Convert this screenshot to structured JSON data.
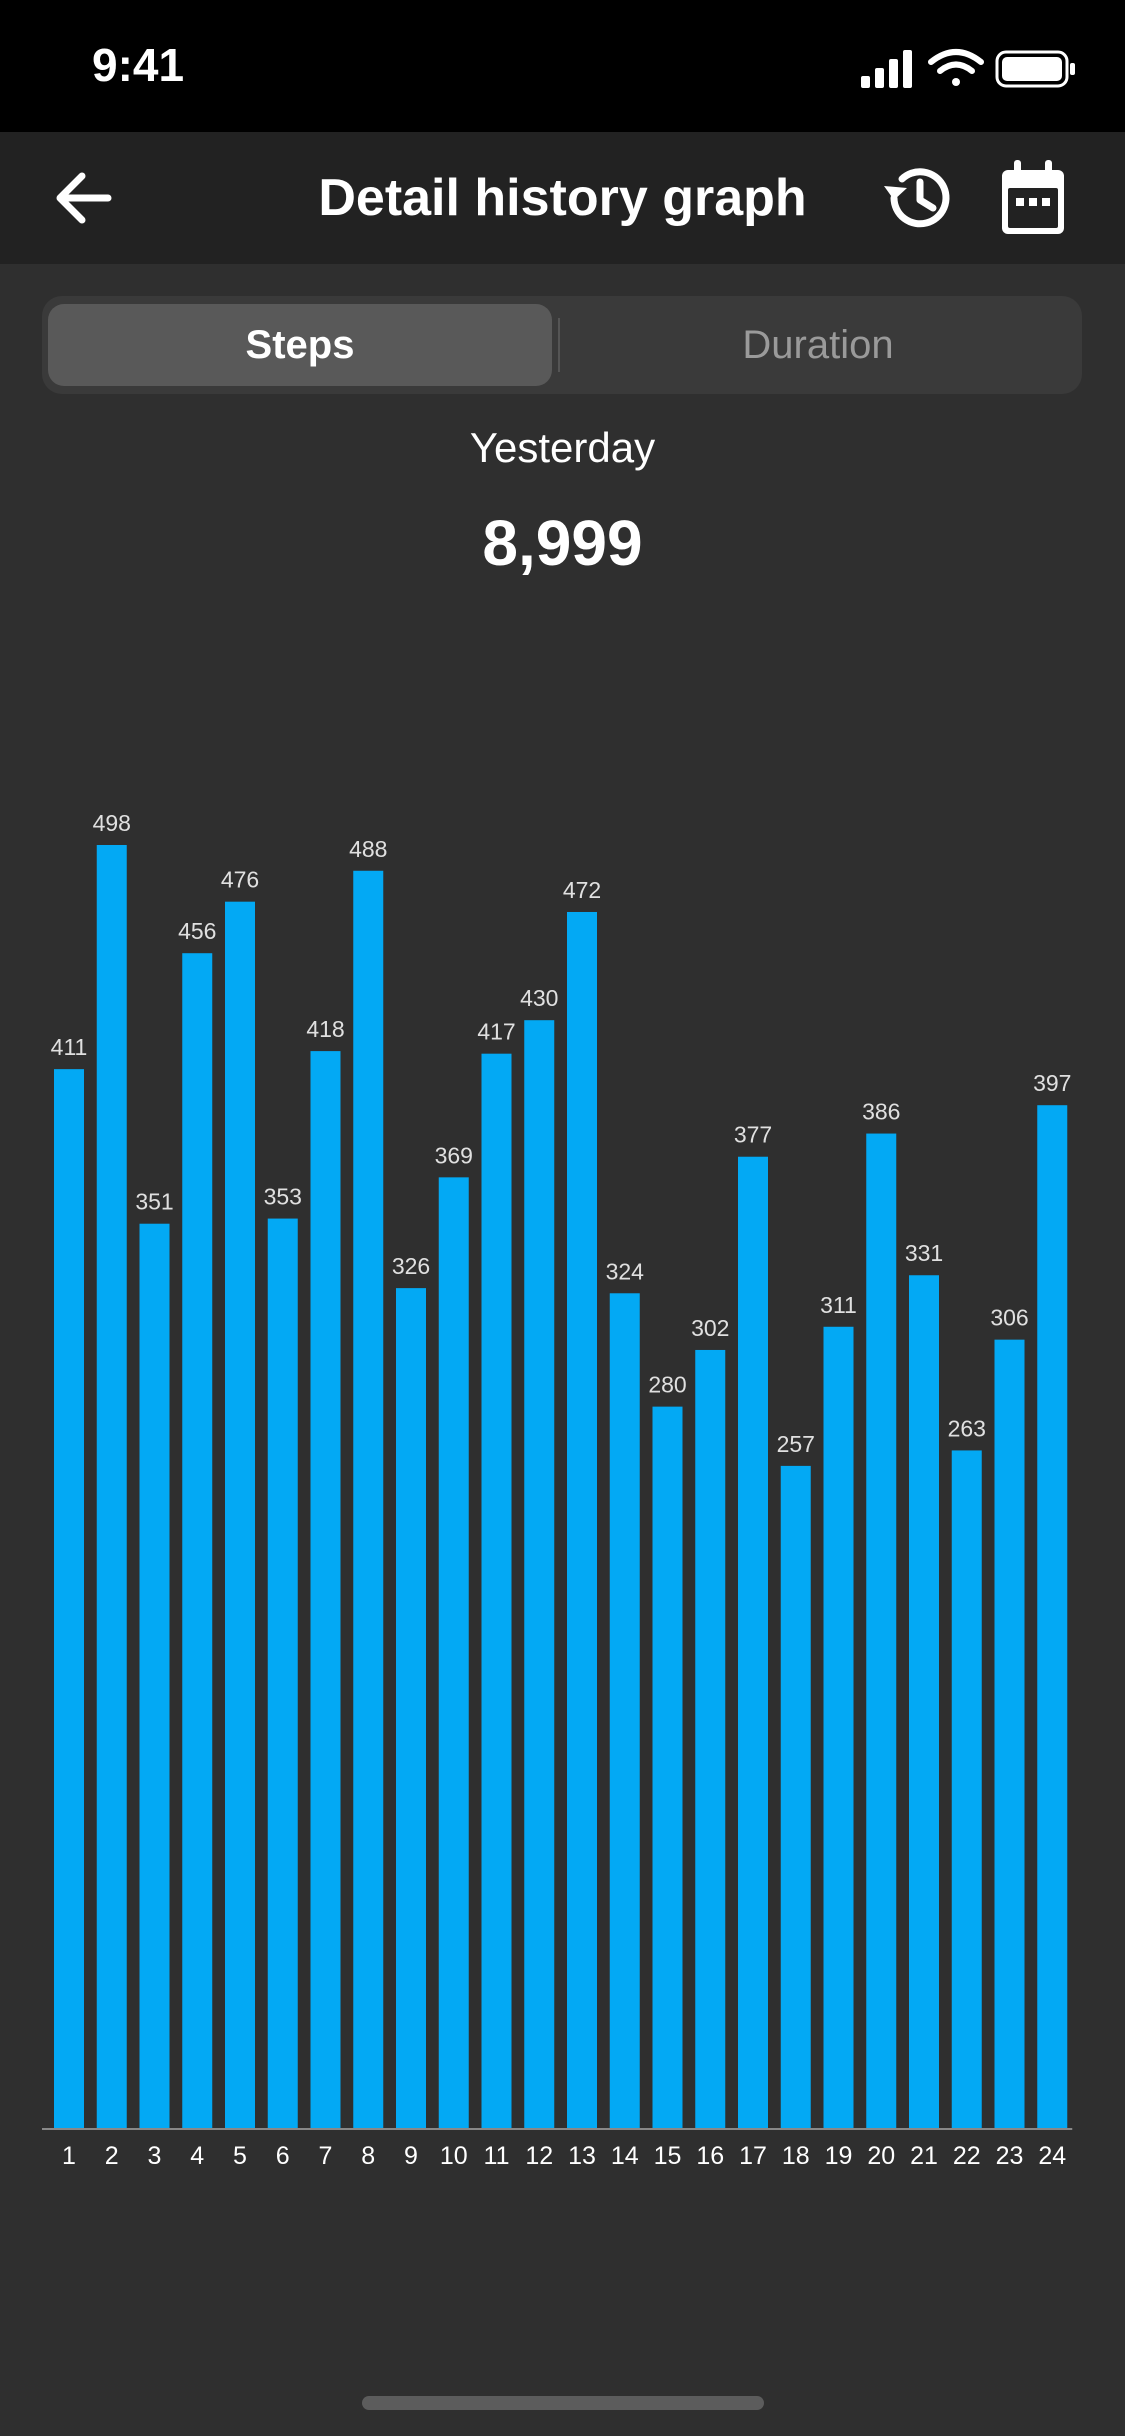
{
  "status_bar": {
    "time": "9:41"
  },
  "header": {
    "title": "Detail history graph"
  },
  "icons": {
    "back": "arrow-left-icon",
    "history": "history-icon",
    "calendar": "calendar-icon",
    "signal": "cellular-signal-icon",
    "wifi": "wifi-icon",
    "battery": "battery-icon"
  },
  "tabs": [
    {
      "label": "Steps",
      "selected": true
    },
    {
      "label": "Duration",
      "selected": false
    }
  ],
  "summary": {
    "period": "Yesterday",
    "total": "8,999"
  },
  "colors": {
    "bar": "#03a9f4",
    "background": "#2f2f2f",
    "nav_background": "#222222",
    "status_background": "#000000"
  },
  "chart_data": {
    "type": "bar",
    "title": "",
    "xlabel": "",
    "ylabel": "",
    "categories": [
      "1",
      "2",
      "3",
      "4",
      "5",
      "6",
      "7",
      "8",
      "9",
      "10",
      "11",
      "12",
      "13",
      "14",
      "15",
      "16",
      "17",
      "18",
      "19",
      "20",
      "21",
      "22",
      "23",
      "24"
    ],
    "values": [
      411,
      498,
      351,
      456,
      476,
      353,
      418,
      488,
      326,
      369,
      417,
      430,
      472,
      324,
      280,
      302,
      377,
      257,
      311,
      386,
      331,
      263,
      306,
      397
    ],
    "ylim": [
      0,
      498
    ],
    "grid": false,
    "data_labels": true
  }
}
